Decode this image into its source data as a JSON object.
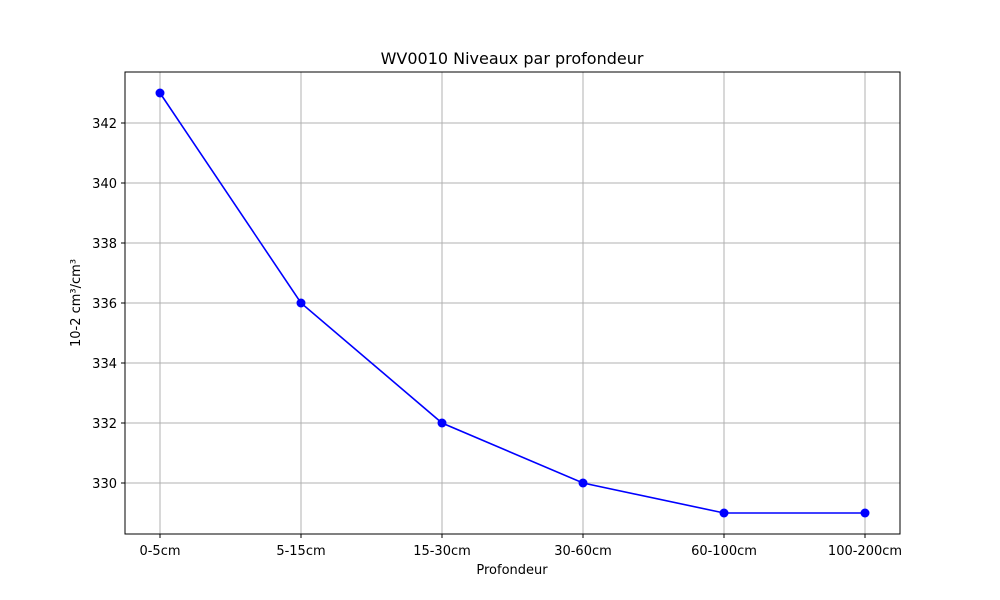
{
  "chart_data": {
    "type": "line",
    "title": "WV0010 Niveaux par profondeur",
    "xlabel": "Profondeur",
    "ylabel": "10-2 cm³/cm³",
    "categories": [
      "0-5cm",
      "5-15cm",
      "15-30cm",
      "30-60cm",
      "60-100cm",
      "100-200cm"
    ],
    "series": [
      {
        "values": [
          343,
          336,
          332,
          330,
          329,
          329
        ],
        "color": "#0000ff",
        "marker": "circle"
      }
    ],
    "ylim": [
      328.3,
      343.7
    ],
    "yticks": [
      330,
      332,
      334,
      336,
      338,
      340,
      342
    ],
    "grid": true
  }
}
